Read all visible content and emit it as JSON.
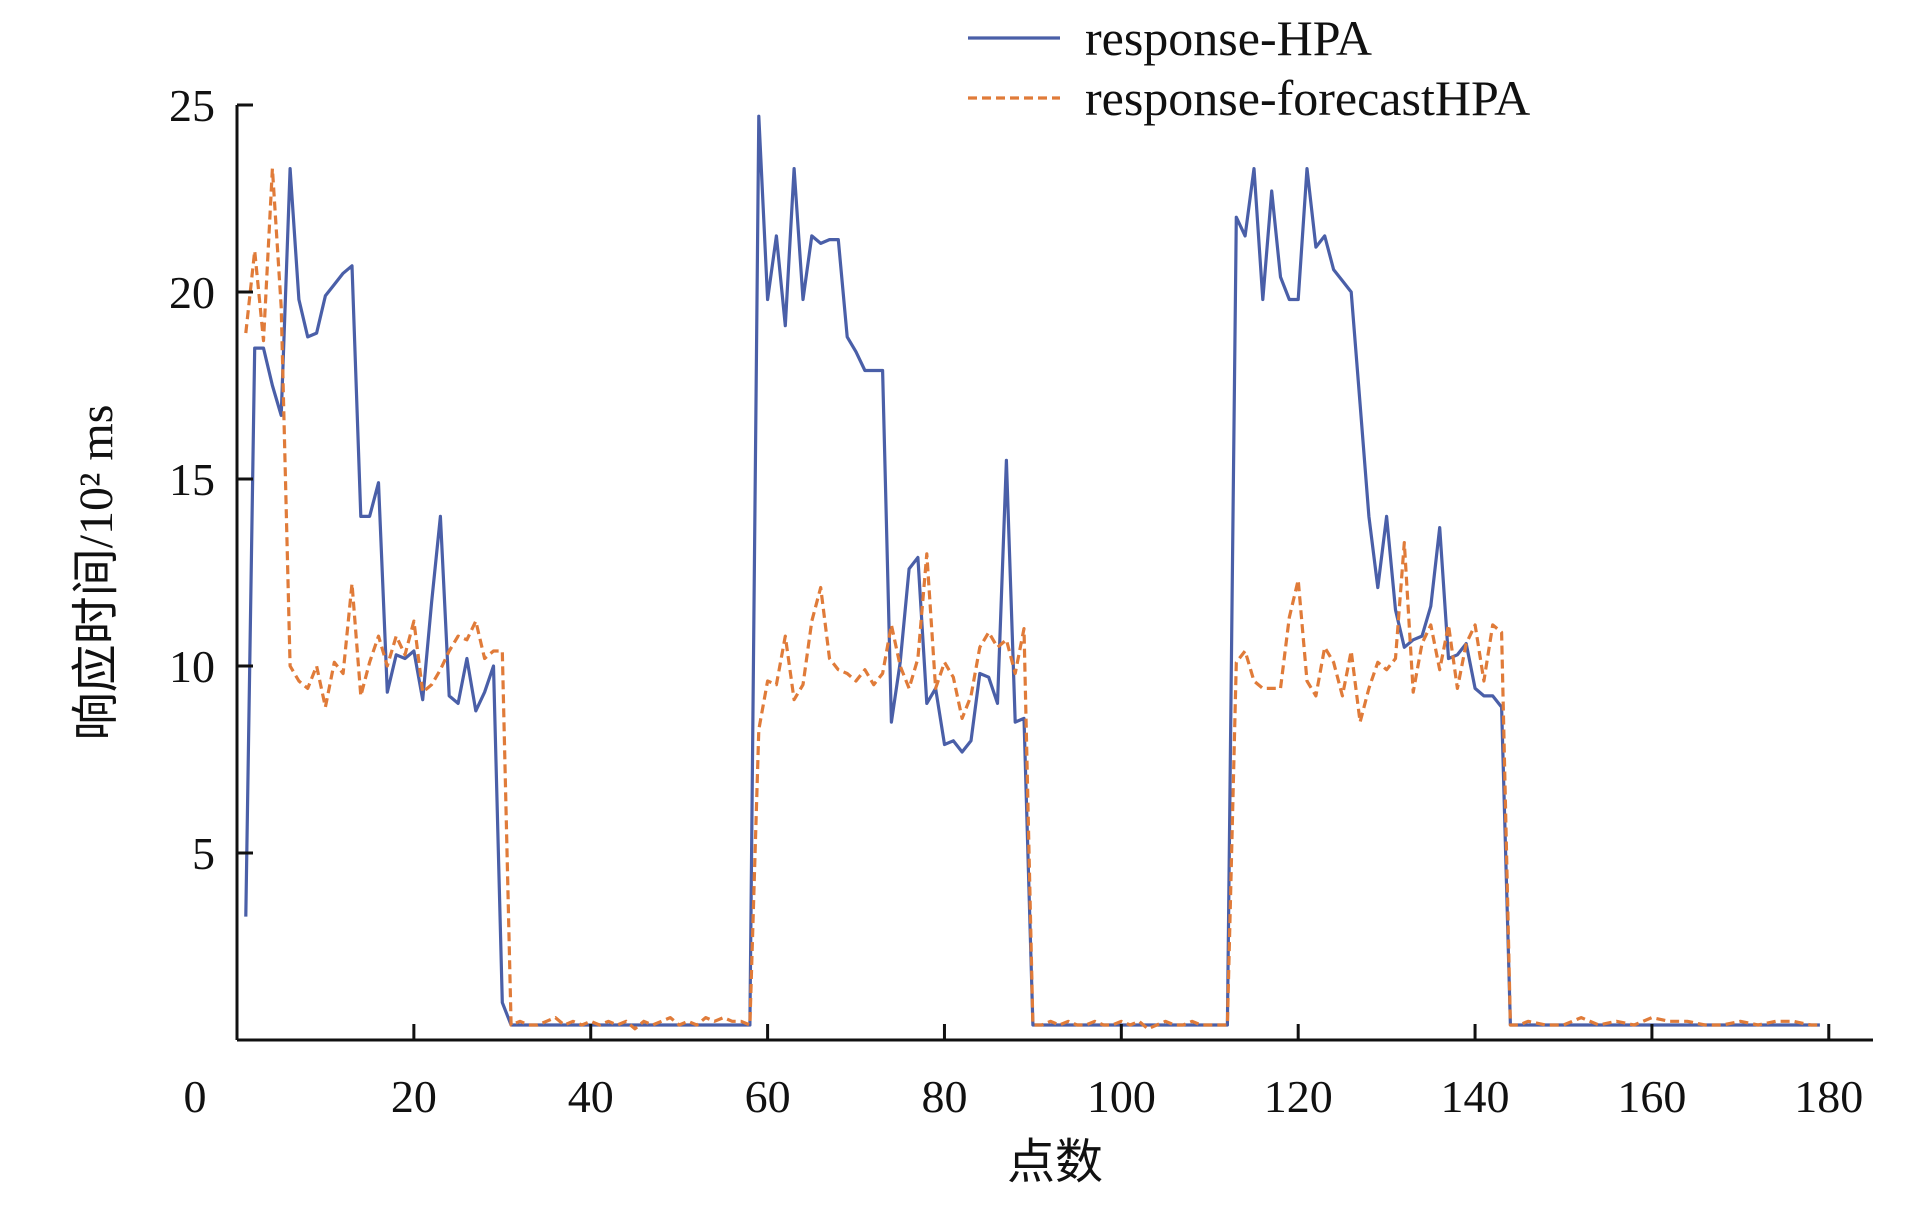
{
  "chart_data": {
    "type": "line",
    "xlabel": "点数",
    "ylabel": "响应时间/10² ms",
    "xlim": [
      0,
      185
    ],
    "ylim": [
      0,
      25
    ],
    "xticks": [
      0,
      20,
      40,
      60,
      80,
      100,
      120,
      140,
      160,
      180
    ],
    "yticks": [
      5,
      10,
      15,
      20,
      25
    ],
    "grid": false,
    "legend_position": "top-right",
    "series": [
      {
        "name": "response-HPA",
        "color": "#4a5fa8",
        "style": "solid",
        "points": [
          [
            1,
            3.3
          ],
          [
            2,
            18.5
          ],
          [
            3,
            18.5
          ],
          [
            4,
            17.5
          ],
          [
            5,
            16.7
          ],
          [
            6,
            23.3
          ],
          [
            7,
            19.8
          ],
          [
            8,
            18.8
          ],
          [
            9,
            18.9
          ],
          [
            10,
            19.9
          ],
          [
            11,
            20.2
          ],
          [
            12,
            20.5
          ],
          [
            13,
            20.7
          ],
          [
            14,
            14.0
          ],
          [
            15,
            14.0
          ],
          [
            16,
            14.9
          ],
          [
            17,
            9.3
          ],
          [
            18,
            10.3
          ],
          [
            19,
            10.2
          ],
          [
            20,
            10.4
          ],
          [
            21,
            9.1
          ],
          [
            22,
            11.7
          ],
          [
            23,
            14.0
          ],
          [
            24,
            9.2
          ],
          [
            25,
            9.0
          ],
          [
            26,
            10.2
          ],
          [
            27,
            8.8
          ],
          [
            28,
            9.3
          ],
          [
            29,
            10.0
          ],
          [
            30,
            1.0
          ],
          [
            31,
            0.4
          ],
          [
            32,
            0.4
          ],
          [
            33,
            0.4
          ],
          [
            34,
            0.4
          ],
          [
            35,
            0.4
          ],
          [
            36,
            0.4
          ],
          [
            37,
            0.4
          ],
          [
            38,
            0.4
          ],
          [
            39,
            0.4
          ],
          [
            40,
            0.4
          ],
          [
            41,
            0.4
          ],
          [
            42,
            0.4
          ],
          [
            43,
            0.4
          ],
          [
            44,
            0.4
          ],
          [
            45,
            0.4
          ],
          [
            46,
            0.4
          ],
          [
            47,
            0.4
          ],
          [
            48,
            0.4
          ],
          [
            49,
            0.4
          ],
          [
            50,
            0.4
          ],
          [
            51,
            0.4
          ],
          [
            52,
            0.4
          ],
          [
            53,
            0.4
          ],
          [
            54,
            0.4
          ],
          [
            55,
            0.4
          ],
          [
            56,
            0.4
          ],
          [
            57,
            0.4
          ],
          [
            58,
            0.4
          ],
          [
            59,
            24.7
          ],
          [
            60,
            19.8
          ],
          [
            61,
            21.5
          ],
          [
            62,
            19.1
          ],
          [
            63,
            23.3
          ],
          [
            64,
            19.8
          ],
          [
            65,
            21.5
          ],
          [
            66,
            21.3
          ],
          [
            67,
            21.4
          ],
          [
            68,
            21.4
          ],
          [
            69,
            18.8
          ],
          [
            70,
            18.4
          ],
          [
            71,
            17.9
          ],
          [
            72,
            17.9
          ],
          [
            73,
            17.9
          ],
          [
            74,
            8.5
          ],
          [
            75,
            10.1
          ],
          [
            76,
            12.6
          ],
          [
            77,
            12.9
          ],
          [
            78,
            9.0
          ],
          [
            79,
            9.4
          ],
          [
            80,
            7.9
          ],
          [
            81,
            8.0
          ],
          [
            82,
            7.7
          ],
          [
            83,
            8.0
          ],
          [
            84,
            9.8
          ],
          [
            85,
            9.7
          ],
          [
            86,
            9.0
          ],
          [
            87,
            15.5
          ],
          [
            88,
            8.5
          ],
          [
            89,
            8.6
          ],
          [
            90,
            0.4
          ],
          [
            91,
            0.4
          ],
          [
            92,
            0.4
          ],
          [
            93,
            0.4
          ],
          [
            94,
            0.4
          ],
          [
            95,
            0.4
          ],
          [
            96,
            0.4
          ],
          [
            97,
            0.4
          ],
          [
            98,
            0.4
          ],
          [
            99,
            0.4
          ],
          [
            100,
            0.4
          ],
          [
            101,
            0.4
          ],
          [
            102,
            0.4
          ],
          [
            103,
            0.4
          ],
          [
            104,
            0.4
          ],
          [
            105,
            0.4
          ],
          [
            106,
            0.4
          ],
          [
            107,
            0.4
          ],
          [
            108,
            0.4
          ],
          [
            109,
            0.4
          ],
          [
            110,
            0.4
          ],
          [
            111,
            0.4
          ],
          [
            112,
            0.4
          ],
          [
            113,
            22.0
          ],
          [
            114,
            21.5
          ],
          [
            115,
            23.3
          ],
          [
            116,
            19.8
          ],
          [
            117,
            22.7
          ],
          [
            118,
            20.4
          ],
          [
            119,
            19.8
          ],
          [
            120,
            19.8
          ],
          [
            121,
            23.3
          ],
          [
            122,
            21.2
          ],
          [
            123,
            21.5
          ],
          [
            124,
            20.6
          ],
          [
            125,
            20.3
          ],
          [
            126,
            20.0
          ],
          [
            127,
            17.0
          ],
          [
            128,
            14.0
          ],
          [
            129,
            12.1
          ],
          [
            130,
            14.0
          ],
          [
            131,
            11.5
          ],
          [
            132,
            10.5
          ],
          [
            133,
            10.7
          ],
          [
            134,
            10.8
          ],
          [
            135,
            11.6
          ],
          [
            136,
            13.7
          ],
          [
            137,
            10.2
          ],
          [
            138,
            10.3
          ],
          [
            139,
            10.6
          ],
          [
            140,
            9.4
          ],
          [
            141,
            9.2
          ],
          [
            142,
            9.2
          ],
          [
            143,
            8.9
          ],
          [
            144,
            0.4
          ],
          [
            145,
            0.4
          ],
          [
            150,
            0.4
          ],
          [
            155,
            0.4
          ],
          [
            160,
            0.4
          ],
          [
            165,
            0.4
          ],
          [
            170,
            0.4
          ],
          [
            175,
            0.4
          ],
          [
            179,
            0.4
          ]
        ]
      },
      {
        "name": "response-forecastHPA",
        "color": "#e07b39",
        "style": "dashed",
        "points": [
          [
            1,
            18.9
          ],
          [
            2,
            21.1
          ],
          [
            3,
            18.7
          ],
          [
            4,
            23.3
          ],
          [
            5,
            19.6
          ],
          [
            6,
            10.0
          ],
          [
            7,
            9.6
          ],
          [
            8,
            9.4
          ],
          [
            9,
            10.0
          ],
          [
            10,
            8.9
          ],
          [
            11,
            10.1
          ],
          [
            12,
            9.8
          ],
          [
            13,
            12.2
          ],
          [
            14,
            9.2
          ],
          [
            15,
            10.1
          ],
          [
            16,
            10.8
          ],
          [
            17,
            10.0
          ],
          [
            18,
            10.8
          ],
          [
            19,
            10.3
          ],
          [
            20,
            11.2
          ],
          [
            21,
            9.3
          ],
          [
            22,
            9.5
          ],
          [
            23,
            9.9
          ],
          [
            24,
            10.4
          ],
          [
            25,
            10.8
          ],
          [
            26,
            10.7
          ],
          [
            27,
            11.2
          ],
          [
            28,
            10.2
          ],
          [
            29,
            10.4
          ],
          [
            30,
            10.4
          ],
          [
            31,
            0.4
          ],
          [
            32,
            0.5
          ],
          [
            33,
            0.4
          ],
          [
            34,
            0.4
          ],
          [
            35,
            0.5
          ],
          [
            36,
            0.6
          ],
          [
            37,
            0.4
          ],
          [
            38,
            0.5
          ],
          [
            39,
            0.4
          ],
          [
            40,
            0.5
          ],
          [
            41,
            0.4
          ],
          [
            42,
            0.5
          ],
          [
            43,
            0.4
          ],
          [
            44,
            0.5
          ],
          [
            45,
            0.3
          ],
          [
            46,
            0.5
          ],
          [
            47,
            0.4
          ],
          [
            48,
            0.5
          ],
          [
            49,
            0.6
          ],
          [
            50,
            0.4
          ],
          [
            51,
            0.5
          ],
          [
            52,
            0.4
          ],
          [
            53,
            0.6
          ],
          [
            54,
            0.5
          ],
          [
            55,
            0.6
          ],
          [
            56,
            0.5
          ],
          [
            57,
            0.5
          ],
          [
            58,
            0.4
          ],
          [
            59,
            8.3
          ],
          [
            60,
            9.6
          ],
          [
            61,
            9.5
          ],
          [
            62,
            10.8
          ],
          [
            63,
            9.1
          ],
          [
            64,
            9.5
          ],
          [
            65,
            11.2
          ],
          [
            66,
            12.1
          ],
          [
            67,
            10.2
          ],
          [
            68,
            9.9
          ],
          [
            69,
            9.8
          ],
          [
            70,
            9.6
          ],
          [
            71,
            9.9
          ],
          [
            72,
            9.5
          ],
          [
            73,
            9.8
          ],
          [
            74,
            11.1
          ],
          [
            75,
            10.0
          ],
          [
            76,
            9.4
          ],
          [
            77,
            10.2
          ],
          [
            78,
            13.0
          ],
          [
            79,
            9.4
          ],
          [
            80,
            10.1
          ],
          [
            81,
            9.7
          ],
          [
            82,
            8.6
          ],
          [
            83,
            9.2
          ],
          [
            84,
            10.5
          ],
          [
            85,
            10.9
          ],
          [
            86,
            10.5
          ],
          [
            87,
            10.7
          ],
          [
            88,
            9.8
          ],
          [
            89,
            11.0
          ],
          [
            90,
            0.4
          ],
          [
            91,
            0.4
          ],
          [
            92,
            0.5
          ],
          [
            93,
            0.4
          ],
          [
            94,
            0.5
          ],
          [
            95,
            0.4
          ],
          [
            96,
            0.4
          ],
          [
            97,
            0.5
          ],
          [
            98,
            0.4
          ],
          [
            99,
            0.4
          ],
          [
            100,
            0.5
          ],
          [
            101,
            0.4
          ],
          [
            102,
            0.5
          ],
          [
            103,
            0.3
          ],
          [
            104,
            0.4
          ],
          [
            105,
            0.5
          ],
          [
            106,
            0.4
          ],
          [
            107,
            0.4
          ],
          [
            108,
            0.5
          ],
          [
            109,
            0.4
          ],
          [
            110,
            0.4
          ],
          [
            111,
            0.4
          ],
          [
            112,
            0.4
          ],
          [
            113,
            10.1
          ],
          [
            114,
            10.4
          ],
          [
            115,
            9.6
          ],
          [
            116,
            9.4
          ],
          [
            117,
            9.4
          ],
          [
            118,
            9.4
          ],
          [
            119,
            11.3
          ],
          [
            120,
            12.3
          ],
          [
            121,
            9.6
          ],
          [
            122,
            9.2
          ],
          [
            123,
            10.5
          ],
          [
            124,
            10.1
          ],
          [
            125,
            9.2
          ],
          [
            126,
            10.4
          ],
          [
            127,
            8.5
          ],
          [
            128,
            9.4
          ],
          [
            129,
            10.1
          ],
          [
            130,
            9.9
          ],
          [
            131,
            10.2
          ],
          [
            132,
            13.3
          ],
          [
            133,
            9.3
          ],
          [
            134,
            10.6
          ],
          [
            135,
            11.1
          ],
          [
            136,
            9.9
          ],
          [
            137,
            11.1
          ],
          [
            138,
            9.4
          ],
          [
            139,
            10.6
          ],
          [
            140,
            11.1
          ],
          [
            141,
            9.6
          ],
          [
            142,
            11.1
          ],
          [
            143,
            10.9
          ],
          [
            144,
            0.4
          ],
          [
            145,
            0.4
          ],
          [
            146,
            0.5
          ],
          [
            148,
            0.4
          ],
          [
            150,
            0.4
          ],
          [
            152,
            0.6
          ],
          [
            154,
            0.4
          ],
          [
            156,
            0.5
          ],
          [
            158,
            0.4
          ],
          [
            160,
            0.6
          ],
          [
            162,
            0.5
          ],
          [
            164,
            0.5
          ],
          [
            166,
            0.4
          ],
          [
            168,
            0.4
          ],
          [
            170,
            0.5
          ],
          [
            172,
            0.4
          ],
          [
            174,
            0.5
          ],
          [
            176,
            0.5
          ],
          [
            178,
            0.4
          ],
          [
            179,
            0.4
          ]
        ]
      }
    ]
  }
}
